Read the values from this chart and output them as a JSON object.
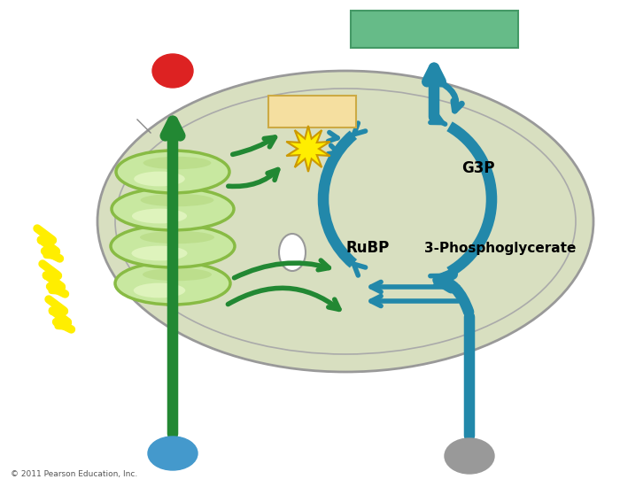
{
  "bg_color": "#ffffff",
  "chloroplast_color": "#d8dfc0",
  "chloroplast_outline": "#999999",
  "inner_outline": "#aaaaaa",
  "thylakoid_color": "#c8e8a0",
  "thylakoid_highlight": "#e8f8c8",
  "thylakoid_outline": "#88bb44",
  "green_arrow_color": "#228833",
  "teal_arrow_color": "#2288aa",
  "blue_circle_color": "#4499cc",
  "gray_circle_color": "#999999",
  "red_circle_color": "#dd2222",
  "yellow_star_color": "#ffee00",
  "yellow_star_edge": "#cc9900",
  "yellow_box_color": "#f5dfa0",
  "yellow_box_edge": "#ccaa44",
  "green_box_color": "#66bb88",
  "green_box_edge": "#449966",
  "white_ellipse_color": "#ffffff",
  "lightning_color": "#ffee00",
  "lightning_edge": "#ccbb00",
  "text_rubp": "RuBP",
  "text_3pg": "3-Phosphoglycerate",
  "text_g3p": "G3P",
  "copyright": "© 2011 Pearson Education, Inc.",
  "label_fontsize": 11
}
